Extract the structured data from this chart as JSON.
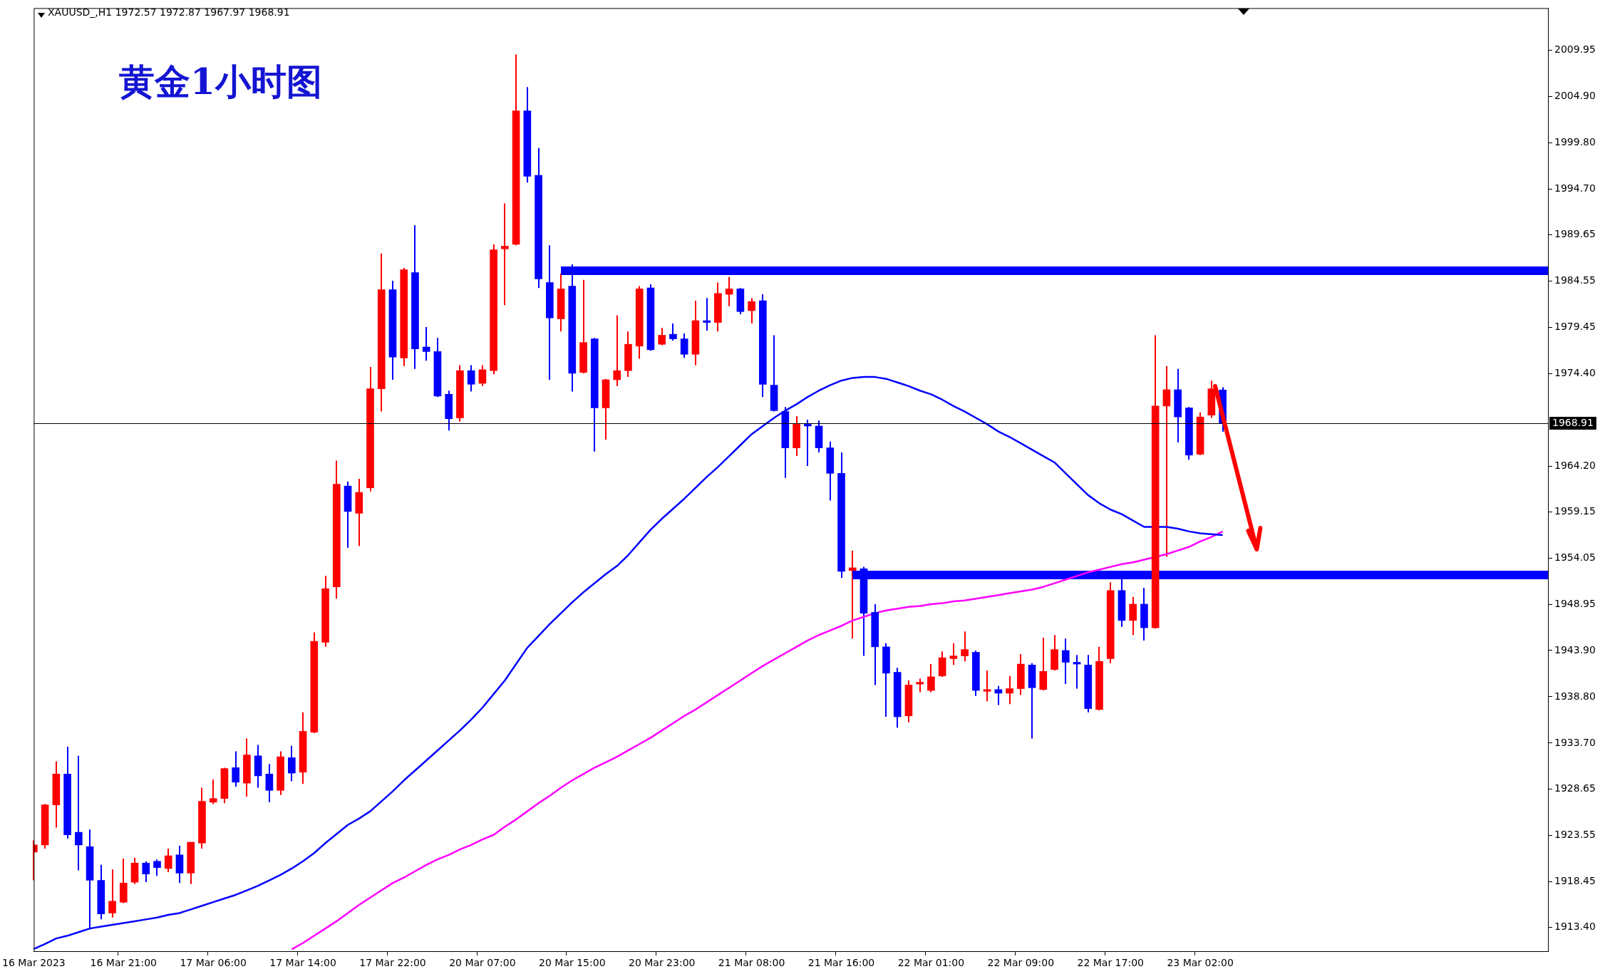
{
  "chart_data": {
    "type": "candlestick",
    "title": "黄金1小时图",
    "subtitle": "XAUUSD_,H1 1972.57 1972.87 1967.97 1968.91",
    "categories": [
      "16 Mar 2023",
      null,
      null,
      null,
      null,
      null,
      null,
      null,
      "16 Mar 21:00",
      null,
      null,
      null,
      null,
      null,
      null,
      null,
      "17 Mar 06:00",
      null,
      null,
      null,
      null,
      null,
      null,
      null,
      "17 Mar 14:00",
      null,
      null,
      null,
      null,
      null,
      null,
      null,
      "17 Mar 22:00",
      null,
      null,
      null,
      null,
      null,
      null,
      null,
      "20 Mar 07:00",
      null,
      null,
      null,
      null,
      null,
      null,
      null,
      "20 Mar 15:00",
      null,
      null,
      null,
      null,
      null,
      null,
      null,
      "20 Mar 23:00",
      null,
      null,
      null,
      null,
      null,
      null,
      null,
      "21 Mar 08:00",
      null,
      null,
      null,
      null,
      null,
      null,
      null,
      "21 Mar 16:00",
      null,
      null,
      null,
      null,
      null,
      null,
      null,
      "22 Mar 01:00",
      null,
      null,
      null,
      null,
      null,
      null,
      null,
      "22 Mar 09:00",
      null,
      null,
      null,
      null,
      null,
      null,
      null,
      "22 Mar 17:00",
      null,
      null,
      null,
      null,
      null,
      null,
      null,
      "23 Mar 02:00",
      null,
      null,
      null,
      null,
      null,
      null,
      null,
      null,
      null,
      null,
      null,
      null,
      null,
      null,
      null,
      null,
      null,
      null,
      null,
      null,
      null,
      null,
      null,
      null,
      null,
      null,
      null,
      null,
      null,
      null,
      null
    ],
    "ohlc": [
      [
        1921.7,
        1923.0,
        1918.6,
        1922.5
      ],
      [
        1922.5,
        1927.0,
        1922.1,
        1926.9
      ],
      [
        1926.9,
        1931.7,
        1924.4,
        1930.3
      ],
      [
        1930.3,
        1933.3,
        1923.2,
        1923.6
      ],
      [
        1923.9,
        1932.3,
        1919.7,
        1922.5
      ],
      [
        1922.3,
        1924.2,
        1913.2,
        1918.6
      ],
      [
        1918.6,
        1920.3,
        1914.3,
        1914.9
      ],
      [
        1915.0,
        1919.8,
        1914.5,
        1916.3
      ],
      [
        1916.2,
        1921.0,
        1916.1,
        1918.3
      ],
      [
        1918.4,
        1921.1,
        1918.2,
        1920.5
      ],
      [
        1920.5,
        1920.7,
        1918.4,
        1919.3
      ],
      [
        1920.7,
        1920.9,
        1919.1,
        1920.0
      ],
      [
        1919.9,
        1922.1,
        1919.5,
        1921.3
      ],
      [
        1921.4,
        1922.4,
        1918.3,
        1919.4
      ],
      [
        1919.4,
        1922.8,
        1918.2,
        1922.8
      ],
      [
        1922.7,
        1928.8,
        1922.1,
        1927.3
      ],
      [
        1927.2,
        1929.7,
        1927.0,
        1927.6
      ],
      [
        1927.6,
        1931.0,
        1927.1,
        1930.9
      ],
      [
        1931.0,
        1932.8,
        1928.9,
        1929.4
      ],
      [
        1929.3,
        1934.2,
        1927.8,
        1932.4
      ],
      [
        1932.3,
        1933.5,
        1928.8,
        1930.1
      ],
      [
        1930.3,
        1931.4,
        1927.2,
        1928.5
      ],
      [
        1928.5,
        1932.8,
        1928.0,
        1932.2
      ],
      [
        1932.1,
        1933.4,
        1929.5,
        1930.4
      ],
      [
        1930.5,
        1937.1,
        1929.2,
        1935.0
      ],
      [
        1934.9,
        1945.9,
        1934.8,
        1944.9
      ],
      [
        1944.8,
        1952.1,
        1944.3,
        1950.7
      ],
      [
        1950.9,
        1964.8,
        1949.6,
        1962.2
      ],
      [
        1962.0,
        1962.5,
        1955.2,
        1959.2
      ],
      [
        1959.0,
        1962.8,
        1955.4,
        1961.3
      ],
      [
        1961.8,
        1975.1,
        1961.4,
        1972.7
      ],
      [
        1972.7,
        1987.6,
        1970.2,
        1983.6
      ],
      [
        1983.6,
        1984.6,
        1973.7,
        1976.2
      ],
      [
        1976.1,
        1986.0,
        1975.2,
        1985.8
      ],
      [
        1985.5,
        1990.7,
        1974.9,
        1977.1
      ],
      [
        1977.3,
        1979.5,
        1975.8,
        1976.8
      ],
      [
        1976.8,
        1978.3,
        1971.8,
        1971.9
      ],
      [
        1972.1,
        1972.5,
        1968.1,
        1969.4
      ],
      [
        1969.5,
        1975.3,
        1969.1,
        1974.7
      ],
      [
        1974.7,
        1975.3,
        1972.4,
        1973.2
      ],
      [
        1973.3,
        1975.3,
        1973.0,
        1974.8
      ],
      [
        1974.7,
        1988.6,
        1974.3,
        1988.0
      ],
      [
        1988.1,
        1993.1,
        1981.9,
        1988.4
      ],
      [
        1988.6,
        2009.5,
        1988.5,
        2003.3
      ],
      [
        2003.3,
        2005.9,
        1995.4,
        1996.1
      ],
      [
        1996.2,
        1999.2,
        1983.8,
        1984.8
      ],
      [
        1984.4,
        1988.5,
        1973.7,
        1980.5
      ],
      [
        1980.4,
        1985.4,
        1979.0,
        1983.7
      ],
      [
        1984.0,
        1986.4,
        1972.4,
        1974.4
      ],
      [
        1974.5,
        1984.7,
        1974.4,
        1977.8
      ],
      [
        1978.2,
        1978.3,
        1965.8,
        1970.6
      ],
      [
        1970.6,
        1973.8,
        1967.1,
        1973.7
      ],
      [
        1973.7,
        1980.8,
        1973.0,
        1974.7
      ],
      [
        1974.7,
        1979.0,
        1974.0,
        1977.6
      ],
      [
        1977.4,
        1984.0,
        1976.0,
        1983.7
      ],
      [
        1983.8,
        1984.2,
        1976.9,
        1977.0
      ],
      [
        1977.6,
        1979.4,
        1977.5,
        1978.6
      ],
      [
        1978.7,
        1979.9,
        1978.0,
        1978.2
      ],
      [
        1978.2,
        1978.8,
        1976.1,
        1976.5
      ],
      [
        1976.5,
        1982.4,
        1975.3,
        1980.2
      ],
      [
        1980.2,
        1982.7,
        1979.1,
        1980.0
      ],
      [
        1980.0,
        1984.4,
        1979.0,
        1983.2
      ],
      [
        1983.1,
        1985.0,
        1981.8,
        1983.7
      ],
      [
        1983.7,
        1983.8,
        1980.9,
        1981.2
      ],
      [
        1981.3,
        1982.7,
        1979.9,
        1982.3
      ],
      [
        1982.4,
        1983.1,
        1971.8,
        1973.2
      ],
      [
        1973.1,
        1978.6,
        1970.2,
        1970.3
      ],
      [
        1970.2,
        1970.7,
        1962.9,
        1966.2
      ],
      [
        1966.2,
        1969.7,
        1965.3,
        1968.8
      ],
      [
        1968.8,
        1969.3,
        1964.2,
        1968.6
      ],
      [
        1968.6,
        1969.2,
        1965.7,
        1966.2
      ],
      [
        1966.2,
        1966.9,
        1960.4,
        1963.4
      ],
      [
        1963.4,
        1965.7,
        1951.9,
        1952.6
      ],
      [
        1952.7,
        1954.9,
        1945.2,
        1953.0
      ],
      [
        1952.9,
        1953.1,
        1943.3,
        1948.0
      ],
      [
        1948.1,
        1949.0,
        1940.1,
        1944.3
      ],
      [
        1944.3,
        1944.7,
        1936.6,
        1941.4
      ],
      [
        1941.5,
        1942.0,
        1935.4,
        1936.6
      ],
      [
        1936.7,
        1940.6,
        1936.0,
        1940.1
      ],
      [
        1940.2,
        1940.8,
        1939.3,
        1940.4
      ],
      [
        1939.5,
        1942.4,
        1939.3,
        1941.0
      ],
      [
        1941.1,
        1943.8,
        1941.0,
        1943.1
      ],
      [
        1943.0,
        1944.7,
        1942.3,
        1943.3
      ],
      [
        1943.3,
        1946.0,
        1942.7,
        1944.0
      ],
      [
        1943.7,
        1943.9,
        1938.9,
        1939.5
      ],
      [
        1939.4,
        1941.7,
        1938.3,
        1939.6
      ],
      [
        1939.6,
        1940.0,
        1937.9,
        1939.2
      ],
      [
        1939.2,
        1941.1,
        1938.0,
        1939.7
      ],
      [
        1939.7,
        1943.5,
        1939.0,
        1942.4
      ],
      [
        1942.3,
        1942.5,
        1934.2,
        1939.8
      ],
      [
        1939.6,
        1945.3,
        1939.5,
        1941.6
      ],
      [
        1941.8,
        1945.6,
        1941.7,
        1944.0
      ],
      [
        1943.9,
        1945.2,
        1940.2,
        1942.6
      ],
      [
        1942.6,
        1943.4,
        1939.7,
        1942.4
      ],
      [
        1942.3,
        1943.4,
        1937.1,
        1937.5
      ],
      [
        1937.4,
        1944.3,
        1937.3,
        1942.7
      ],
      [
        1943.0,
        1951.4,
        1942.5,
        1950.5
      ],
      [
        1950.5,
        1952.2,
        1946.5,
        1947.2
      ],
      [
        1947.2,
        1949.8,
        1945.6,
        1949.0
      ],
      [
        1949.0,
        1950.8,
        1945.0,
        1946.4
      ],
      [
        1946.4,
        1978.6,
        1946.3,
        1970.8
      ],
      [
        1970.8,
        1975.2,
        1954.2,
        1972.6
      ],
      [
        1972.6,
        1974.9,
        1966.8,
        1969.6
      ],
      [
        1970.6,
        1970.7,
        1964.9,
        1965.4
      ],
      [
        1965.5,
        1970.1,
        1965.4,
        1969.6
      ],
      [
        1969.8,
        1973.6,
        1969.5,
        1972.7
      ],
      [
        1972.57,
        1972.87,
        1967.97,
        1968.91
      ],
      null,
      null,
      null,
      null,
      null,
      null,
      null,
      null,
      null,
      null,
      null,
      null,
      null,
      null,
      null,
      null,
      null,
      null,
      null,
      null,
      null,
      null,
      null,
      null,
      null,
      null,
      null,
      null,
      null
    ],
    "colors": [
      "#ff0000",
      "#ff0000",
      "#ff0000",
      "#0000ff",
      "#0000ff",
      "#0000ff",
      "#0000ff",
      "#ff0000",
      "#ff0000",
      "#ff0000",
      "#0000ff",
      "#0000ff",
      "#ff0000",
      "#0000ff",
      "#ff0000",
      "#ff0000",
      "#ff0000",
      "#ff0000",
      "#0000ff",
      "#ff0000",
      "#0000ff",
      "#0000ff",
      "#ff0000",
      "#0000ff",
      "#ff0000",
      "#ff0000",
      "#ff0000",
      "#ff0000",
      "#0000ff",
      "#ff0000",
      "#ff0000",
      "#ff0000",
      "#0000ff",
      "#ff0000",
      "#0000ff",
      "#0000ff",
      "#0000ff",
      "#0000ff",
      "#ff0000",
      "#0000ff",
      "#ff0000",
      "#ff0000",
      "#ff0000",
      "#ff0000",
      "#0000ff",
      "#0000ff",
      "#0000ff",
      "#ff0000",
      "#0000ff",
      "#ff0000",
      "#0000ff",
      "#ff0000",
      "#ff0000",
      "#ff0000",
      "#ff0000",
      "#0000ff",
      "#ff0000",
      "#0000ff",
      "#0000ff",
      "#ff0000",
      "#0000ff",
      "#ff0000",
      "#ff0000",
      "#0000ff",
      "#ff0000",
      "#0000ff",
      "#0000ff",
      "#0000ff",
      "#ff0000",
      "#0000ff",
      "#0000ff",
      "#0000ff",
      "#0000ff",
      "#ff0000",
      "#0000ff",
      "#0000ff",
      "#0000ff",
      "#0000ff",
      "#ff0000",
      "#ff0000",
      "#ff0000",
      "#ff0000",
      "#ff0000",
      "#ff0000",
      "#0000ff",
      "#ff0000",
      "#0000ff",
      "#ff0000",
      "#ff0000",
      "#0000ff",
      "#ff0000",
      "#ff0000",
      "#0000ff",
      "#0000ff",
      "#0000ff",
      "#ff0000",
      "#ff0000",
      "#0000ff",
      "#ff0000",
      "#0000ff",
      "#ff0000",
      "#ff0000",
      "#0000ff",
      "#0000ff",
      "#ff0000",
      "#ff0000",
      "#0000ff",
      null,
      null,
      null,
      null,
      null,
      null,
      null,
      null,
      null,
      null,
      null,
      null,
      null,
      null,
      null,
      null,
      null,
      null,
      null,
      null,
      null,
      null,
      null,
      null,
      null,
      null,
      null,
      null,
      null
    ],
    "series": [
      {
        "type": "line",
        "color": "#0000ff",
        "values": [
          1911.05,
          1911.6,
          1912.2,
          1912.5,
          1912.9,
          1913.3,
          1913.5,
          1913.7,
          1913.9,
          1914.1,
          1914.3,
          1914.5,
          1914.8,
          1915.0,
          1915.4,
          1915.8,
          1916.2,
          1916.6,
          1917.0,
          1917.5,
          1918.0,
          1918.6,
          1919.2,
          1919.9,
          1920.7,
          1921.6,
          1922.7,
          1923.7,
          1924.7,
          1925.4,
          1926.2,
          1927.3,
          1928.4,
          1929.6,
          1930.7,
          1931.8,
          1932.9,
          1934.0,
          1935.1,
          1936.3,
          1937.6,
          1939.1,
          1940.6,
          1942.4,
          1944.2,
          1945.5,
          1946.8,
          1948.0,
          1949.2,
          1950.3,
          1951.3,
          1952.3,
          1953.2,
          1954.4,
          1955.8,
          1957.2,
          1958.4,
          1959.5,
          1960.6,
          1961.8,
          1963.0,
          1964.1,
          1965.3,
          1966.5,
          1967.7,
          1968.6,
          1969.5,
          1970.3,
          1971.0,
          1971.8,
          1972.5,
          1973.1,
          1973.6,
          1973.9,
          1974.0,
          1974.0,
          1973.8,
          1973.4,
          1973.0,
          1972.5,
          1972.1,
          1971.5,
          1970.8,
          1970.2,
          1969.5,
          1968.8,
          1968.0,
          1967.4,
          1966.7,
          1966.0,
          1965.3,
          1964.6,
          1963.4,
          1962.2,
          1961.0,
          1960.1,
          1959.4,
          1958.9,
          1958.2,
          1957.5,
          null,
          1957.5,
          1957.3,
          1957.0,
          1956.8,
          1956.7,
          1956.6,
          null,
          null,
          null,
          null,
          null,
          null,
          null,
          null,
          null,
          null,
          null,
          null,
          null,
          null,
          null,
          null,
          null,
          null,
          null,
          null,
          null,
          null,
          null,
          null,
          null,
          null,
          null,
          null,
          null
        ]
      },
      {
        "type": "line",
        "color": "#ff00ff",
        "values": [
          null,
          null,
          null,
          null,
          null,
          null,
          null,
          null,
          null,
          null,
          null,
          null,
          null,
          null,
          null,
          null,
          null,
          null,
          null,
          null,
          null,
          null,
          null,
          1911.0,
          1911.7,
          1912.5,
          1913.3,
          1914.1,
          1915.0,
          1915.9,
          1916.7,
          1917.5,
          1918.3,
          1918.9,
          1919.6,
          1920.3,
          1920.9,
          1921.4,
          1922.0,
          1922.5,
          1923.1,
          1923.6,
          1924.5,
          1925.3,
          1926.2,
          1927.1,
          1927.9,
          1928.8,
          1929.6,
          1930.3,
          1931.0,
          1931.6,
          1932.2,
          1932.9,
          1933.6,
          1934.3,
          1935.1,
          1935.9,
          1936.7,
          1937.4,
          1938.2,
          1939.0,
          1939.8,
          1940.6,
          1941.4,
          1942.2,
          1942.9,
          1943.6,
          1944.3,
          1945.0,
          1945.6,
          1946.1,
          1946.6,
          1947.2,
          1947.6,
          1948.0,
          1948.3,
          1948.5,
          1948.7,
          1948.8,
          1949.0,
          1949.1,
          1949.3,
          1949.4,
          1949.6,
          1949.8,
          1950.0,
          1950.2,
          1950.4,
          1950.6,
          1950.9,
          1951.3,
          1951.7,
          1952.1,
          1952.5,
          1952.8,
          1953.1,
          1953.4,
          1953.6,
          1953.9,
          null,
          1954.5,
          1954.9,
          1955.3,
          1955.9,
          1956.4,
          1957.0,
          null,
          null,
          null,
          null,
          null,
          null,
          null,
          null,
          null,
          null,
          null,
          null,
          null,
          null,
          null,
          null,
          null,
          null,
          null,
          null,
          null,
          null,
          null,
          null,
          null,
          null,
          null,
          null,
          null
        ]
      },
      {
        "type": "line",
        "color": "#0000ff",
        "values": [
          null,
          null,
          null,
          null,
          null,
          null,
          null,
          null,
          null,
          null,
          null,
          null,
          null,
          null,
          null,
          null,
          null,
          null,
          null,
          null,
          null,
          null,
          null,
          null,
          null,
          null,
          null,
          null,
          null,
          null,
          null,
          null,
          null,
          null,
          null,
          null,
          null,
          null,
          null,
          null,
          null,
          null,
          null,
          null,
          null,
          null,
          null,
          1985.7,
          1985.7,
          1985.7,
          1985.7,
          1985.7,
          1985.7,
          1985.7,
          1985.7,
          1985.7,
          1985.7,
          1985.7,
          1985.7,
          1985.7,
          1985.7,
          1985.7,
          1985.7,
          1985.7,
          1985.7,
          1985.7,
          1985.7,
          1985.7,
          1985.7,
          1985.7,
          1985.7,
          1985.7,
          1985.7,
          1985.7,
          1985.7,
          1985.7,
          1985.7,
          1985.7,
          1985.7,
          1985.7,
          1985.7,
          1985.7,
          1985.7,
          1985.7,
          1985.7,
          1985.7,
          1985.7,
          1985.7,
          1985.7,
          1985.7,
          1985.7,
          1985.7,
          1985.7,
          1985.7,
          1985.7,
          1985.7,
          1985.7,
          1985.7,
          1985.7,
          1985.7,
          1985.7,
          1985.7,
          1985.7,
          1985.7,
          1985.7,
          1985.7,
          1985.7,
          1985.7,
          1985.7,
          1985.7,
          1985.7,
          1985.7,
          1985.7,
          1985.7,
          1985.7,
          1985.7,
          1985.7,
          1985.7,
          1985.7,
          1985.7,
          1985.7,
          1985.7,
          1985.7,
          1985.7,
          1985.7,
          1985.7,
          1985.7,
          1985.7,
          1985.7,
          1985.7,
          1985.7,
          1985.7,
          1985.7,
          1985.7,
          1985.7,
          1985.7
        ]
      },
      {
        "type": "line",
        "color": "#0000ff",
        "values": [
          null,
          null,
          null,
          null,
          null,
          null,
          null,
          null,
          null,
          null,
          null,
          null,
          null,
          null,
          null,
          null,
          null,
          null,
          null,
          null,
          null,
          null,
          null,
          null,
          null,
          null,
          null,
          null,
          null,
          null,
          null,
          null,
          null,
          null,
          null,
          null,
          null,
          null,
          null,
          null,
          null,
          null,
          null,
          null,
          null,
          null,
          null,
          null,
          null,
          null,
          null,
          null,
          null,
          null,
          null,
          null,
          null,
          null,
          null,
          null,
          null,
          null,
          null,
          null,
          null,
          null,
          null,
          null,
          null,
          null,
          null,
          null,
          null,
          1952.2,
          1952.2,
          1952.2,
          1952.2,
          1952.2,
          1952.2,
          1952.2,
          1952.2,
          1952.2,
          1952.2,
          1952.2,
          1952.2,
          1952.2,
          1952.2,
          1952.2,
          1952.2,
          1952.2,
          1952.2,
          1952.2,
          1952.2,
          1952.2,
          1952.2,
          1952.2,
          1952.2,
          1952.2,
          1952.2,
          1952.2,
          null,
          1952.2,
          1952.2,
          1952.2,
          1952.2,
          1952.2,
          1952.2,
          1952.2,
          1952.2,
          1952.2,
          1952.2,
          1952.2,
          1952.2,
          1952.2,
          1952.2,
          1952.2,
          1952.2,
          1952.2,
          1952.2,
          1952.2,
          1952.2,
          1952.2,
          1952.2,
          1952.2,
          1952.2,
          1952.2,
          1952.2,
          1952.2,
          1952.2,
          1952.2,
          1952.2,
          1952.2,
          1952.2,
          1952.2,
          1952.2,
          1952.2
        ]
      }
    ],
    "ylim": [
      1910.8,
      2014.6
    ],
    "yticks": [
      {
        "value": 1913.4,
        "label": "1913.40"
      },
      {
        "value": 1918.45,
        "label": "1918.45"
      },
      {
        "value": 1923.55,
        "label": "1923.55"
      },
      {
        "value": 1928.65,
        "label": "1928.65"
      },
      {
        "value": 1933.7,
        "label": "1933.70"
      },
      {
        "value": 1938.8,
        "label": "1938.80"
      },
      {
        "value": 1943.9,
        "label": "1943.90"
      },
      {
        "value": 1948.95,
        "label": "1948.95"
      },
      {
        "value": 1954.05,
        "label": "1954.05"
      },
      {
        "value": 1959.15,
        "label": "1959.15"
      },
      {
        "value": 1964.2,
        "label": "1964.20"
      },
      {
        "value": 1974.4,
        "label": "1974.40"
      },
      {
        "value": 1979.45,
        "label": "1979.45"
      },
      {
        "value": 1984.55,
        "label": "1984.55"
      },
      {
        "value": 1989.65,
        "label": "1989.65"
      },
      {
        "value": 1994.7,
        "label": "1994.70"
      },
      {
        "value": 1999.8,
        "label": "1999.80"
      },
      {
        "value": 2004.9,
        "label": "2004.90"
      },
      {
        "value": 2009.95,
        "label": "2009.95"
      }
    ],
    "ref_lines": [
      {
        "axis": "y",
        "value": 1968.91,
        "label": "1968.91",
        "color": "#000000"
      }
    ]
  }
}
